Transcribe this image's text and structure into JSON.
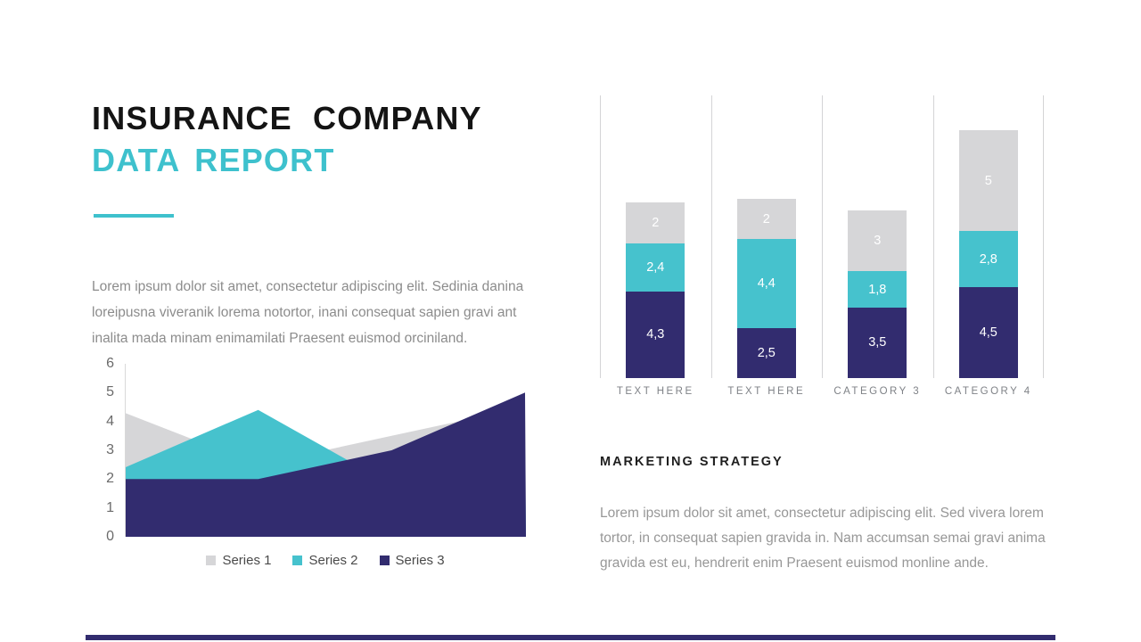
{
  "header": {
    "title_line1": "INSURANCE COMPANY",
    "title_line2": "DATA REPORT"
  },
  "intro": {
    "text": "Lorem ipsum dolor sit amet,  consectetur adipiscing elit. Sedinia danina loreipusna viveranik lorema notortor, inani consequat sapien gravi ant inalita mada  minam enimamilati Praesent euismod orciniland."
  },
  "marketing": {
    "heading": "MARKETING STRATEGY",
    "text": "Lorem ipsum dolor sit amet,  consectetur adipiscing elit. Sed vivera lorem tortor, in consequat sapien gravida in. Nam  accumsan semai gravi anima gravida est eu, hendrerit enim Praesent euismod monline ande."
  },
  "colors": {
    "accent_teal": "#3EC1CD",
    "series_gray": "#D6D6D8",
    "series_teal": "#46C2CD",
    "series_navy": "#322C6F",
    "gridline": "#D4D4D6",
    "footer_bar": "#322C6F"
  },
  "chart_data": [
    {
      "id": "area-chart",
      "type": "area",
      "x": [
        1,
        2,
        3,
        4
      ],
      "series": [
        {
          "name": "Series 1",
          "color": "series_gray",
          "values": [
            4.3,
            2.5,
            3.5,
            4.5
          ]
        },
        {
          "name": "Series 2",
          "color": "series_teal",
          "values": [
            2.4,
            4.4,
            1.8,
            2.8
          ]
        },
        {
          "name": "Series 3",
          "color": "series_navy",
          "values": [
            2,
            2,
            3,
            5
          ]
        }
      ],
      "ylim": [
        0,
        6
      ],
      "yticks": [
        6,
        5,
        4,
        3,
        2,
        1,
        0
      ],
      "grid": false,
      "legend_position": "bottom",
      "legend": [
        "Series 1",
        "Series 2",
        "Series 3"
      ]
    },
    {
      "id": "stacked-bar-chart",
      "type": "bar",
      "stacked": true,
      "categories": [
        "TEXT HERE",
        "TEXT HERE",
        "CATEGORY 3",
        "CATEGORY 4"
      ],
      "series": [
        {
          "name": "bottom",
          "color": "series_navy",
          "values": [
            4.3,
            2.5,
            3.5,
            4.5
          ],
          "labels": [
            "4,3",
            "2,5",
            "3,5",
            "4,5"
          ]
        },
        {
          "name": "middle",
          "color": "series_teal",
          "values": [
            2.4,
            4.4,
            1.8,
            2.8
          ],
          "labels": [
            "2,4",
            "4,4",
            "1,8",
            "2,8"
          ]
        },
        {
          "name": "top",
          "color": "series_gray",
          "values": [
            2,
            2,
            3,
            5
          ],
          "labels": [
            "2",
            "2",
            "3",
            "5"
          ]
        }
      ],
      "grid": "vertical-category-separators",
      "data_labels": "inside-white"
    }
  ]
}
